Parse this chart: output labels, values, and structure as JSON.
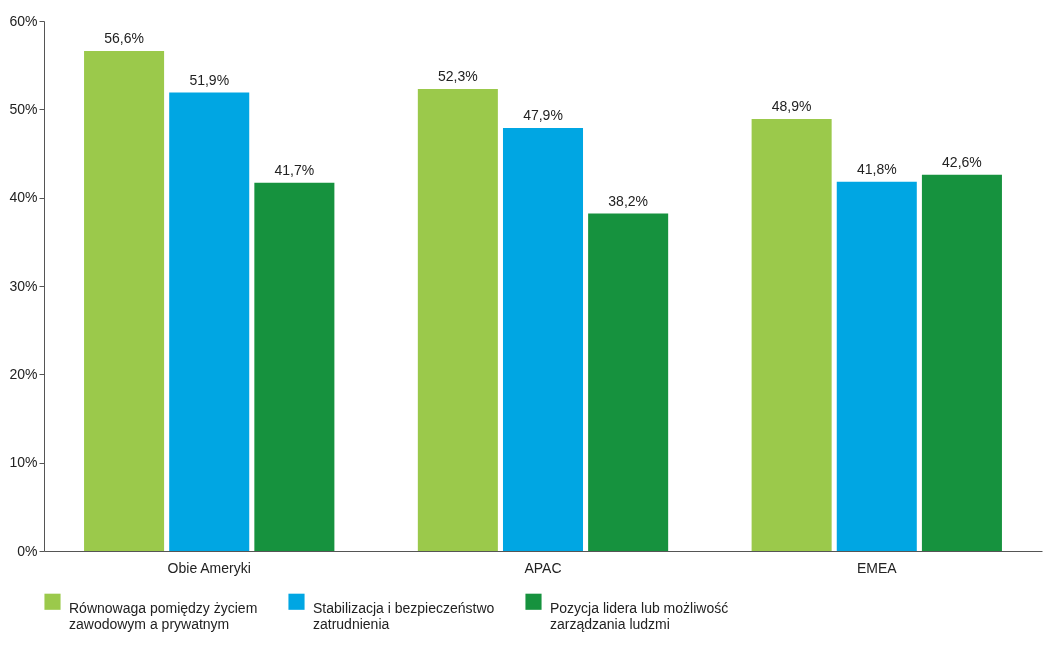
{
  "chart_data": {
    "type": "bar",
    "categories": [
      "Obie Ameryki",
      "APAC",
      "EMEA"
    ],
    "series": [
      {
        "name": "Równowaga pomiędzy życiem zawodowym a prywatnym",
        "color": "#9bc94b",
        "values": [
          56.6,
          52.3,
          48.9
        ],
        "value_labels": [
          "56,6%",
          "52,3%",
          "48,9%"
        ]
      },
      {
        "name": "Stabilizacja i bezpieczeństwo zatrudnienia",
        "color": "#00a6e3",
        "values": [
          51.9,
          47.9,
          41.8
        ],
        "value_labels": [
          "51,9%",
          "47,9%",
          "41,8%"
        ]
      },
      {
        "name": "Pozycja lidera lub możliwość zarządzania ludzmi",
        "color": "#16923e",
        "values": [
          41.7,
          38.2,
          42.6
        ],
        "value_labels": [
          "41,7%",
          "38,2%",
          "42,6%"
        ]
      }
    ],
    "ylim": [
      0,
      60
    ],
    "yticks": [
      {
        "value": 0,
        "label": "0%"
      },
      {
        "value": 10,
        "label": "10%"
      },
      {
        "value": 20,
        "label": "20%"
      },
      {
        "value": 30,
        "label": "30%"
      },
      {
        "value": 40,
        "label": "40%"
      },
      {
        "value": 50,
        "label": "50%"
      },
      {
        "value": 60,
        "label": "60%"
      }
    ],
    "legend": "bottom"
  }
}
